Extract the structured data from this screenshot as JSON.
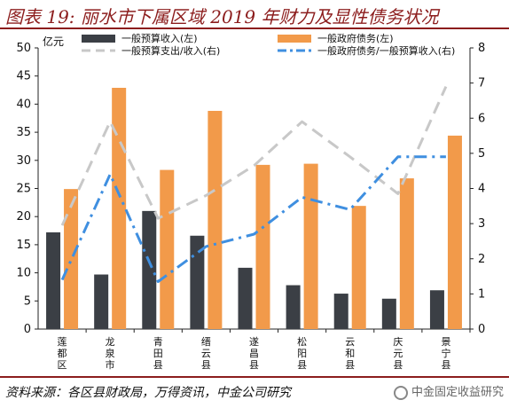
{
  "header": {
    "title": "图表 19:  丽水市下属区域 2019 年财力及显性债务状况"
  },
  "footer": {
    "source": "资料来源：各区县财政局，万得资讯，中金公司研究",
    "watermark": "中金固定收益研究"
  },
  "chart_data": {
    "type": "bar",
    "categories": [
      "莲都区",
      "龙泉市",
      "青田县",
      "缙云县",
      "遂昌县",
      "松阳县",
      "云和县",
      "庆元县",
      "景宁县"
    ],
    "y_left": {
      "unit": "亿元",
      "min": 0,
      "max": 50,
      "ticks": [
        0,
        5,
        10,
        15,
        20,
        25,
        30,
        35,
        40,
        45,
        50
      ]
    },
    "y_right": {
      "min": 0,
      "max": 8,
      "ticks": [
        0,
        1,
        2,
        3,
        4,
        5,
        6,
        7,
        8
      ]
    },
    "series": [
      {
        "name": "一般预算收入(左)",
        "kind": "bar",
        "axis": "left",
        "color": "#3b3f45",
        "values": [
          17.2,
          9.7,
          21.0,
          16.6,
          10.9,
          7.8,
          6.3,
          5.4,
          6.9
        ]
      },
      {
        "name": "一般政府债务(左)",
        "kind": "bar",
        "axis": "left",
        "color": "#f29a4a",
        "values": [
          24.9,
          42.9,
          28.3,
          38.8,
          29.2,
          29.4,
          21.9,
          26.8,
          34.4
        ]
      },
      {
        "name": "一般预算支出/收入(右)",
        "kind": "line",
        "axis": "right",
        "color": "#c8c8c8",
        "dash": "long",
        "values": [
          2.95,
          5.9,
          3.15,
          3.8,
          4.65,
          5.9,
          4.9,
          3.85,
          6.9
        ]
      },
      {
        "name": "一般政府债务/一般预算收入(右)",
        "kind": "line",
        "axis": "right",
        "color": "#3f8fe0",
        "dash": "dashdot",
        "values": [
          1.4,
          4.4,
          1.35,
          2.35,
          2.7,
          3.75,
          3.4,
          4.9,
          4.9
        ]
      }
    ],
    "grid": false,
    "legend_position": "top"
  }
}
